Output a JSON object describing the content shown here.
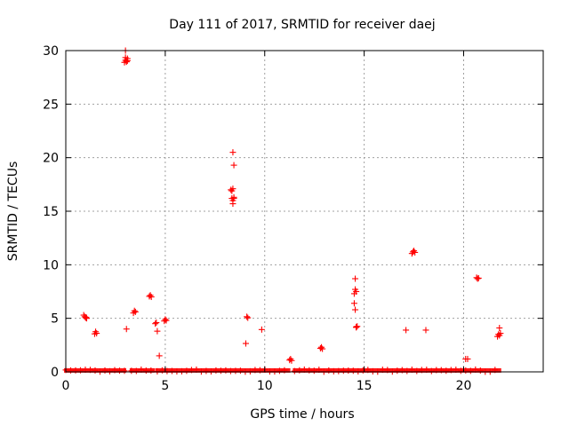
{
  "chart_data": {
    "type": "scatter",
    "title": "Day 111 of 2017, SRMTID for receiver daej",
    "xlabel": "GPS time / hours",
    "ylabel": "SRMTID / TECUs",
    "xlim": [
      0,
      24
    ],
    "ylim": [
      0,
      30
    ],
    "x_ticks": [
      0,
      5,
      10,
      15,
      20
    ],
    "y_ticks": [
      0,
      5,
      10,
      15,
      20,
      25,
      30
    ],
    "grid": true,
    "marker": "+",
    "color": "#ff0000",
    "baseline_segments": [
      {
        "x_start": 0.0,
        "x_end": 2.95,
        "y": 0.05
      },
      {
        "x_start": 3.3,
        "x_end": 4.4,
        "y": 0.05
      },
      {
        "x_start": 4.6,
        "x_end": 11.2,
        "y": 0.05
      },
      {
        "x_start": 11.5,
        "x_end": 21.8,
        "y": 0.05
      }
    ],
    "series": [
      {
        "name": "SRMTID",
        "x": [
          0.9,
          0.95,
          1.0,
          1.02,
          1.05,
          1.45,
          1.5,
          1.55,
          2.95,
          3.0,
          3.05,
          3.1,
          3.0,
          3.05,
          3.0,
          3.1,
          3.05,
          3.4,
          3.45,
          3.5,
          4.2,
          4.25,
          4.3,
          4.5,
          4.55,
          4.6,
          4.7,
          4.95,
          5.0,
          5.05,
          8.3,
          8.35,
          8.4,
          8.35,
          8.4,
          8.45,
          8.4,
          8.45,
          8.4,
          8.45,
          9.1,
          9.15,
          9.05,
          9.85,
          11.25,
          11.3,
          11.35,
          12.8,
          12.85,
          12.9,
          14.5,
          14.55,
          14.6,
          14.55,
          14.5,
          14.55,
          14.6,
          14.65,
          14.6,
          17.1,
          17.4,
          17.45,
          17.5,
          17.55,
          18.1,
          20.1,
          20.2,
          20.65,
          20.7,
          20.75,
          21.7,
          21.75,
          21.8,
          21.8,
          21.85
        ],
        "y": [
          5.3,
          5.15,
          5.05,
          5.1,
          5.0,
          3.55,
          3.75,
          3.6,
          28.9,
          29.1,
          29.0,
          29.25,
          29.35,
          28.95,
          30.0,
          29.05,
          4.0,
          5.5,
          5.7,
          5.6,
          7.05,
          7.15,
          7.0,
          4.5,
          4.6,
          3.8,
          1.5,
          4.75,
          4.9,
          4.8,
          17.0,
          16.9,
          17.1,
          16.2,
          16.0,
          16.3,
          15.7,
          19.3,
          20.5,
          16.2,
          5.15,
          5.05,
          2.65,
          3.95,
          1.1,
          1.2,
          1.05,
          2.2,
          2.3,
          2.15,
          7.3,
          7.7,
          7.5,
          8.7,
          6.4,
          5.8,
          4.15,
          4.25,
          4.2,
          3.9,
          11.05,
          11.2,
          11.3,
          11.15,
          3.9,
          1.2,
          1.2,
          8.8,
          8.7,
          8.75,
          3.3,
          3.5,
          3.4,
          4.1,
          3.6
        ]
      }
    ]
  }
}
